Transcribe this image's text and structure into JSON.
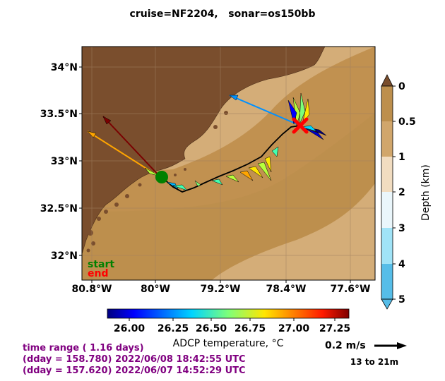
{
  "title": "cruise=NF2204,   sonar=os150bb",
  "map": {
    "lon_ticks": [
      "80.8°W",
      "80°W",
      "79.2°W",
      "78.4°W",
      "77.6°W"
    ],
    "lat_ticks": [
      "34°N",
      "33.5°N",
      "33°N",
      "32.5°N",
      "32°N"
    ],
    "legend_start": "start",
    "legend_end": "end",
    "colors": {
      "land": "#7a4e2d",
      "shelf": "#bd8f4d",
      "slope": "#d1a66b",
      "deep": "#d4ad78",
      "track": "#000000",
      "start_marker": "#008000",
      "end_marker": "#ff0000"
    }
  },
  "depth_colorbar": {
    "label": "Depth (km)",
    "ticks": [
      "0",
      "0.5",
      "1",
      "2",
      "3",
      "4",
      "5"
    ]
  },
  "temp_colorbar": {
    "label": "ADCP temperature, °C",
    "ticks": [
      "26.00",
      "26.25",
      "26.50",
      "26.75",
      "27.00",
      "27.25"
    ]
  },
  "scale": {
    "label": "0.2 m/s",
    "depth_range": "13 to 21m"
  },
  "time_info": {
    "line1": "time range ( 1.16 days)",
    "line2": "(dday = 158.780) 2022/06/08 18:42:55 UTC",
    "line3": "(dday = 157.620) 2022/06/07 14:52:29 UTC"
  }
}
